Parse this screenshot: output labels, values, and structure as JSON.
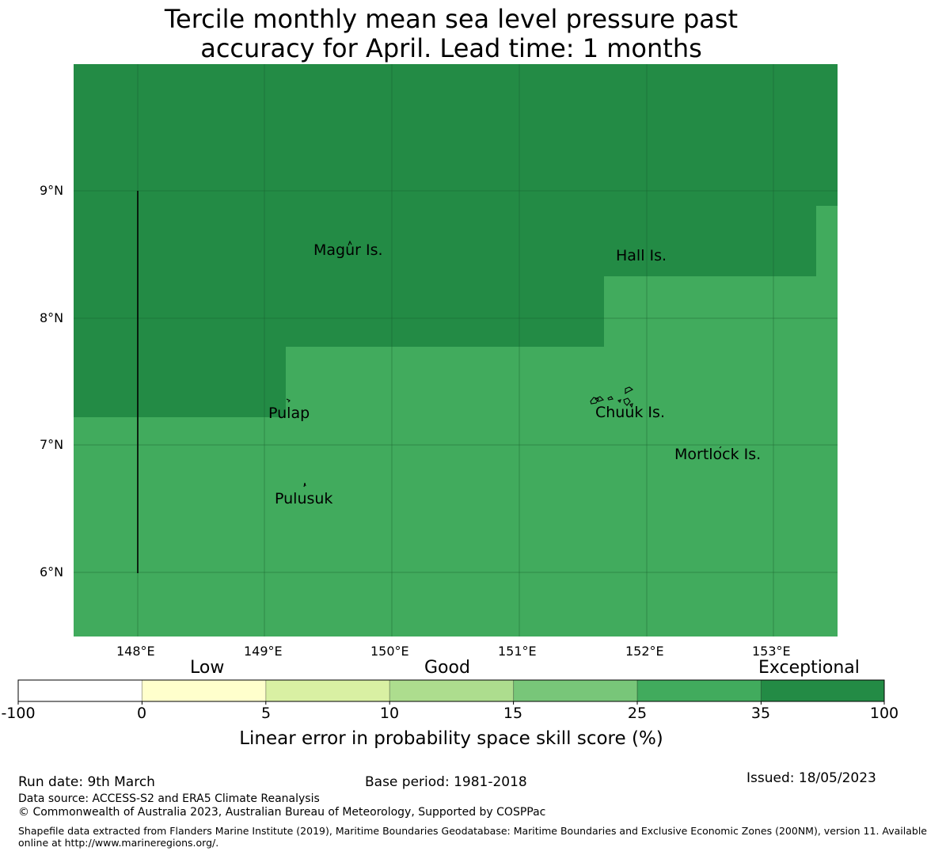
{
  "title": {
    "line1": "Tercile monthly mean sea level pressure past",
    "line2": "accuracy for April. Lead time: 1 months"
  },
  "map": {
    "lat_ticks": [
      "9°N",
      "8°N",
      "7°N",
      "6°N"
    ],
    "lon_ticks": [
      "148°E",
      "149°E",
      "150°E",
      "151°E",
      "152°E",
      "153°E"
    ],
    "extent": {
      "lon": [
        147.5,
        153.5
      ],
      "lat": [
        5.5,
        10.0
      ]
    },
    "gridlines": true,
    "places": [
      {
        "name": "Magur Is."
      },
      {
        "name": "Hall Is."
      },
      {
        "name": "Pulap"
      },
      {
        "name": "Chuuk Is."
      },
      {
        "name": "Mortlock Is."
      },
      {
        "name": "Pulusuk"
      }
    ],
    "regions": [
      {
        "class": "35-100",
        "color": "#238b45"
      },
      {
        "class": "25-35",
        "color": "#41ab5d"
      }
    ]
  },
  "colorbar": {
    "categories": [
      "Low",
      "Good",
      "Exceptional"
    ],
    "ticks": [
      "-100",
      "0",
      "5",
      "10",
      "15",
      "25",
      "35",
      "100"
    ],
    "colors": [
      "#ffffff",
      "#ffffcc",
      "#d9f0a3",
      "#addd8e",
      "#78c679",
      "#41ab5d",
      "#238b45"
    ],
    "label": "Linear error in probability space skill score (%)"
  },
  "footer": {
    "run_date": "Run date: 9th March",
    "base_period": "Base period: 1981-2018",
    "issued": "Issued: 18/05/2023",
    "data_source": "Data source: ACCESS-S2 and ERA5 Climate Reanalysis",
    "copyright": "© Commonwealth of Australia 2023, Australian Bureau of Meteorology, Supported by COSPPac",
    "shapefile_line1": "Shapefile data extracted from Flanders Marine Institute (2019), Maritime Boundaries Geodatabase: Maritime Boundaries and Exclusive Economic Zones (200NM), version 11. Available",
    "shapefile_line2": "online at http://www.marineregions.org/."
  }
}
